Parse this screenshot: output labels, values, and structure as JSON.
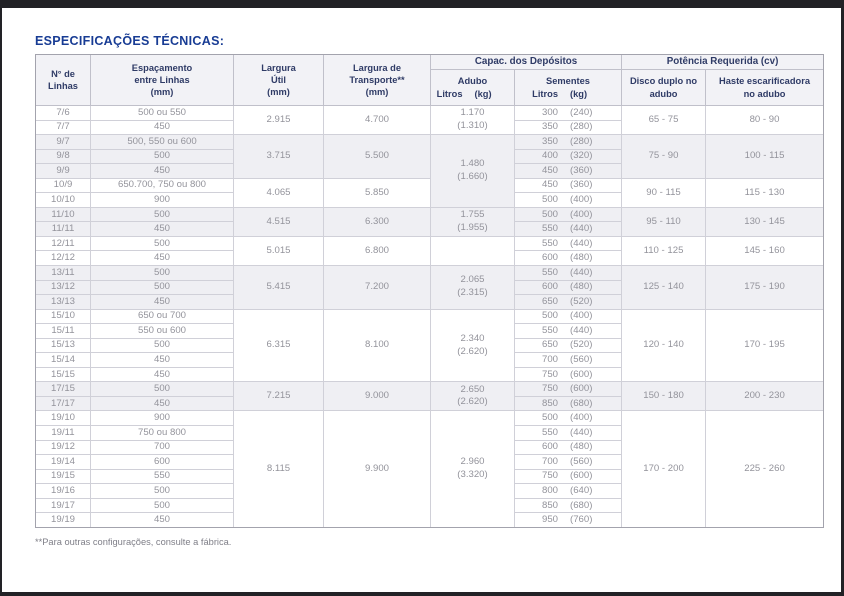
{
  "page": {
    "title": "ESPECIFICAÇÕES TÉCNICAS:",
    "footnote": "**Para outras configurações, consulte a fábrica."
  },
  "table": {
    "header": {
      "linhas": [
        "N° de",
        "Linhas"
      ],
      "espacamento": [
        "Espaçamento",
        "entre Linhas",
        "(mm)"
      ],
      "largura_util": [
        "Largura",
        "Útil",
        "(mm)"
      ],
      "largura_transporte": [
        "Largura de",
        "Transporte**",
        "(mm)"
      ],
      "group_depositos": "Capac. dos Depósitos",
      "adubo_line1": "Adubo",
      "adubo_litros": "Litros",
      "adubo_kg": "(kg)",
      "sementes_line1": "Sementes",
      "sementes_litros": "Litros",
      "sementes_kg": "(kg)",
      "group_potencia": "Potência Requerida (cv)",
      "disco": [
        "Disco duplo no",
        "adubo"
      ],
      "haste": [
        "Haste escarificadora",
        "no adubo"
      ]
    },
    "groups": [
      {
        "shade": false,
        "largura_util": "2.915",
        "largura_transporte": "4.700",
        "adubo": {
          "span": 2,
          "litros": "1.170",
          "kg": "(1.310)"
        },
        "potencia_disco": "65 - 75",
        "potencia_haste": "80 - 90",
        "rows": [
          {
            "linhas": "7/6",
            "espacamento": "500 ou 550",
            "sem_litros": "300",
            "sem_kg": "(240)"
          },
          {
            "linhas": "7/7",
            "espacamento": "450",
            "sem_litros": "350",
            "sem_kg": "(280)"
          }
        ]
      },
      {
        "shade": true,
        "largura_util": "3.715",
        "largura_transporte": "5.500",
        "adubo": {
          "span": 5,
          "litros": "1.480",
          "kg": "(1.660)"
        },
        "potencia_disco": "75 - 90",
        "potencia_haste": "100 - 115",
        "rows": [
          {
            "linhas": "9/7",
            "espacamento": "500, 550 ou 600",
            "sem_litros": "350",
            "sem_kg": "(280)"
          },
          {
            "linhas": "9/8",
            "espacamento": "500",
            "sem_litros": "400",
            "sem_kg": "(320)"
          },
          {
            "linhas": "9/9",
            "espacamento": "450",
            "sem_litros": "450",
            "sem_kg": "(360)"
          }
        ]
      },
      {
        "shade": false,
        "largura_util": "4.065",
        "largura_transporte": "5.850",
        "adubo": null,
        "potencia_disco": "90 - 115",
        "potencia_haste": "115 - 130",
        "rows": [
          {
            "linhas": "10/9",
            "espacamento": "650.700, 750 ou 800",
            "sem_litros": "450",
            "sem_kg": "(360)"
          },
          {
            "linhas": "10/10",
            "espacamento": "900",
            "sem_litros": "500",
            "sem_kg": "(400)"
          }
        ]
      },
      {
        "shade": true,
        "largura_util": "4.515",
        "largura_transporte": "6.300",
        "adubo": {
          "span": 2,
          "litros": "1.755",
          "kg": "(1.955)"
        },
        "potencia_disco": "95 - 110",
        "potencia_haste": "130 - 145",
        "rows": [
          {
            "linhas": "11/10",
            "espacamento": "500",
            "sem_litros": "500",
            "sem_kg": "(400)"
          },
          {
            "linhas": "11/11",
            "espacamento": "450",
            "sem_litros": "550",
            "sem_kg": "(440)"
          }
        ]
      },
      {
        "shade": false,
        "largura_util": "5.015",
        "largura_transporte": "6.800",
        "adubo": {
          "span": 2,
          "litros": "",
          "kg": ""
        },
        "potencia_disco": "110 - 125",
        "potencia_haste": "145 - 160",
        "rows": [
          {
            "linhas": "12/11",
            "espacamento": "500",
            "sem_litros": "550",
            "sem_kg": "(440)"
          },
          {
            "linhas": "12/12",
            "espacamento": "450",
            "sem_litros": "600",
            "sem_kg": "(480)"
          }
        ]
      },
      {
        "shade": true,
        "largura_util": "5.415",
        "largura_transporte": "7.200",
        "adubo": {
          "span": 3,
          "litros": "2.065",
          "kg": "(2.315)"
        },
        "potencia_disco": "125 - 140",
        "potencia_haste": "175 - 190",
        "rows": [
          {
            "linhas": "13/11",
            "espacamento": "500",
            "sem_litros": "550",
            "sem_kg": "(440)"
          },
          {
            "linhas": "13/12",
            "espacamento": "500",
            "sem_litros": "600",
            "sem_kg": "(480)"
          },
          {
            "linhas": "13/13",
            "espacamento": "450",
            "sem_litros": "650",
            "sem_kg": "(520)"
          }
        ]
      },
      {
        "shade": false,
        "largura_util": "6.315",
        "largura_transporte": "8.100",
        "adubo": {
          "span": 5,
          "litros": "2.340",
          "kg": "(2.620)"
        },
        "potencia_disco": "120 - 140",
        "potencia_haste": "170 - 195",
        "rows": [
          {
            "linhas": "15/10",
            "espacamento": "650 ou 700",
            "sem_litros": "500",
            "sem_kg": "(400)"
          },
          {
            "linhas": "15/11",
            "espacamento": "550 ou 600",
            "sem_litros": "550",
            "sem_kg": "(440)"
          },
          {
            "linhas": "15/13",
            "espacamento": "500",
            "sem_litros": "650",
            "sem_kg": "(520)"
          },
          {
            "linhas": "15/14",
            "espacamento": "450",
            "sem_litros": "700",
            "sem_kg": "(560)"
          },
          {
            "linhas": "15/15",
            "espacamento": "450",
            "sem_litros": "750",
            "sem_kg": "(600)"
          }
        ]
      },
      {
        "shade": true,
        "largura_util": "7.215",
        "largura_transporte": "9.000",
        "adubo": {
          "span": 2,
          "litros": "2.650",
          "kg": "(2.620)"
        },
        "potencia_disco": "150 - 180",
        "potencia_haste": "200 - 230",
        "rows": [
          {
            "linhas": "17/15",
            "espacamento": "500",
            "sem_litros": "750",
            "sem_kg": "(600)"
          },
          {
            "linhas": "17/17",
            "espacamento": "450",
            "sem_litros": "850",
            "sem_kg": "(680)"
          }
        ]
      },
      {
        "shade": false,
        "largura_util": "8.115",
        "largura_transporte": "9.900",
        "adubo": {
          "span": 8,
          "litros": "2.960",
          "kg": "(3.320)"
        },
        "potencia_disco": "170 - 200",
        "potencia_haste": "225 - 260",
        "rows": [
          {
            "linhas": "19/10",
            "espacamento": "900",
            "sem_litros": "500",
            "sem_kg": "(400)"
          },
          {
            "linhas": "19/11",
            "espacamento": "750 ou 800",
            "sem_litros": "550",
            "sem_kg": "(440)"
          },
          {
            "linhas": "19/12",
            "espacamento": "700",
            "sem_litros": "600",
            "sem_kg": "(480)"
          },
          {
            "linhas": "19/14",
            "espacamento": "600",
            "sem_litros": "700",
            "sem_kg": "(560)"
          },
          {
            "linhas": "19/15",
            "espacamento": "550",
            "sem_litros": "750",
            "sem_kg": "(600)"
          },
          {
            "linhas": "19/16",
            "espacamento": "500",
            "sem_litros": "800",
            "sem_kg": "(640)"
          },
          {
            "linhas": "19/17",
            "espacamento": "500",
            "sem_litros": "850",
            "sem_kg": "(680)"
          },
          {
            "linhas": "19/19",
            "espacamento": "450",
            "sem_litros": "950",
            "sem_kg": "(760)"
          }
        ]
      }
    ]
  }
}
